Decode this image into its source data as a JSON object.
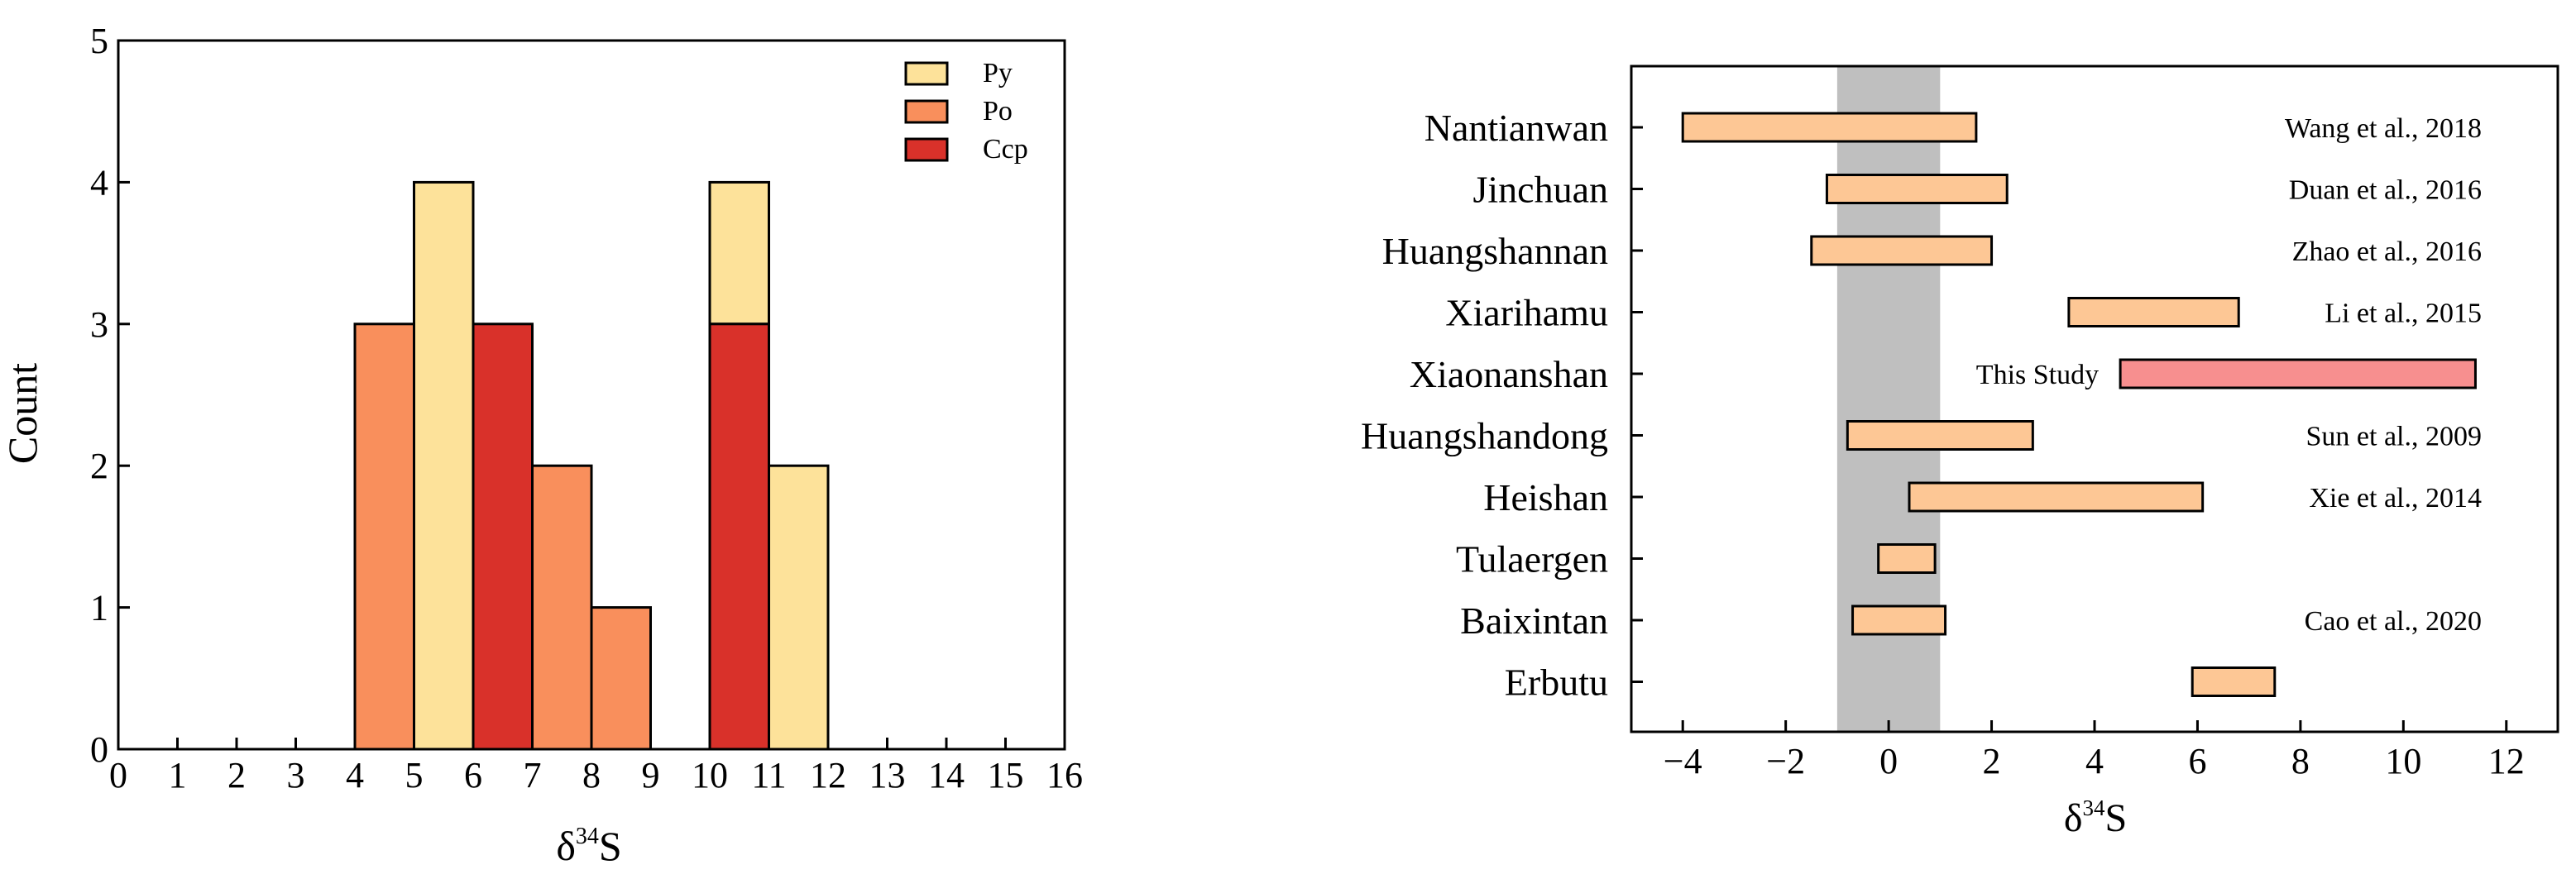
{
  "chart_data": [
    {
      "type": "bar",
      "subtype": "stacked-histogram",
      "xlabel_base": "δ",
      "xlabel_sup": "34",
      "xlabel_tail": "S",
      "ylabel": "Count",
      "xlim": [
        0,
        16
      ],
      "ylim": [
        0,
        5
      ],
      "xticks": [
        "0",
        "1",
        "2",
        "3",
        "4",
        "5",
        "6",
        "7",
        "8",
        "9",
        "10",
        "11",
        "12",
        "13",
        "14",
        "15",
        "16"
      ],
      "yticks": [
        "0",
        "1",
        "2",
        "3",
        "4",
        "5"
      ],
      "legend": {
        "placement": "top-right",
        "entries": [
          {
            "name": "Py",
            "color": "#fde29a"
          },
          {
            "name": "Po",
            "color": "#f98f5c"
          },
          {
            "name": "Ccp",
            "color": "#d9312a"
          }
        ]
      },
      "series": [
        {
          "name": "Py",
          "color": "#fde29a",
          "bins": [
            {
              "x0": 5,
              "x1": 6,
              "y0": 0,
              "y1": 4
            },
            {
              "x0": 10,
              "x1": 11,
              "y0": 3,
              "y1": 4
            },
            {
              "x0": 11,
              "x1": 12,
              "y0": 0,
              "y1": 2
            }
          ]
        },
        {
          "name": "Po",
          "color": "#f98f5c",
          "bins": [
            {
              "x0": 4,
              "x1": 5,
              "y0": 0,
              "y1": 3
            },
            {
              "x0": 7,
              "x1": 8,
              "y0": 0,
              "y1": 2
            },
            {
              "x0": 8,
              "x1": 9,
              "y0": 0,
              "y1": 1
            }
          ]
        },
        {
          "name": "Ccp",
          "color": "#d9312a",
          "bins": [
            {
              "x0": 6,
              "x1": 7,
              "y0": 0,
              "y1": 3
            },
            {
              "x0": 10,
              "x1": 11,
              "y0": 0,
              "y1": 3
            }
          ]
        }
      ],
      "grid": false
    },
    {
      "type": "range-bar",
      "xlabel_base": "δ",
      "xlabel_sup": "34",
      "xlabel_tail": "S",
      "xlim": [
        -5,
        13
      ],
      "xticks": [
        {
          "value": -4,
          "label": "−4"
        },
        {
          "value": -2,
          "label": "−2"
        },
        {
          "value": 0,
          "label": "0"
        },
        {
          "value": 2,
          "label": "2"
        },
        {
          "value": 4,
          "label": "4"
        },
        {
          "value": 6,
          "label": "6"
        },
        {
          "value": 8,
          "label": "8"
        },
        {
          "value": 10,
          "label": "10"
        },
        {
          "value": 12,
          "label": "12"
        }
      ],
      "shaded_band": {
        "x0": -1,
        "x1": 1,
        "color": "#bfbfbf"
      },
      "bar_color": "#fdc795",
      "highlight_color": "#f78f8f",
      "rows": [
        {
          "name": "Nantianwan",
          "min": -4.0,
          "max": 1.7,
          "ref": "Wang et al., 2018"
        },
        {
          "name": "Jinchuan",
          "min": -1.2,
          "max": 2.3,
          "ref": "Duan et al., 2016"
        },
        {
          "name": "Huangshannan",
          "min": -1.5,
          "max": 2.0,
          "ref": "Zhao et al., 2016"
        },
        {
          "name": "Xiarihamu",
          "min": 3.5,
          "max": 6.8,
          "ref": "Li et al., 2015"
        },
        {
          "name": "Xiaonanshan",
          "min": 4.5,
          "max": 11.4,
          "ref": "This Study",
          "highlight": true
        },
        {
          "name": "Huangshandong",
          "min": -0.8,
          "max": 2.8,
          "ref": "Sun et al., 2009"
        },
        {
          "name": "Heishan",
          "min": 0.4,
          "max": 6.1,
          "ref": "Xie et al., 2014"
        },
        {
          "name": "Tulaergen",
          "min": -0.2,
          "max": 0.9,
          "ref": ""
        },
        {
          "name": "Baixintan",
          "min": -0.7,
          "max": 1.1,
          "ref": "Cao et al., 2020"
        },
        {
          "name": "Erbutu",
          "min": 5.9,
          "max": 7.5,
          "ref": ""
        }
      ],
      "grid": false
    }
  ]
}
